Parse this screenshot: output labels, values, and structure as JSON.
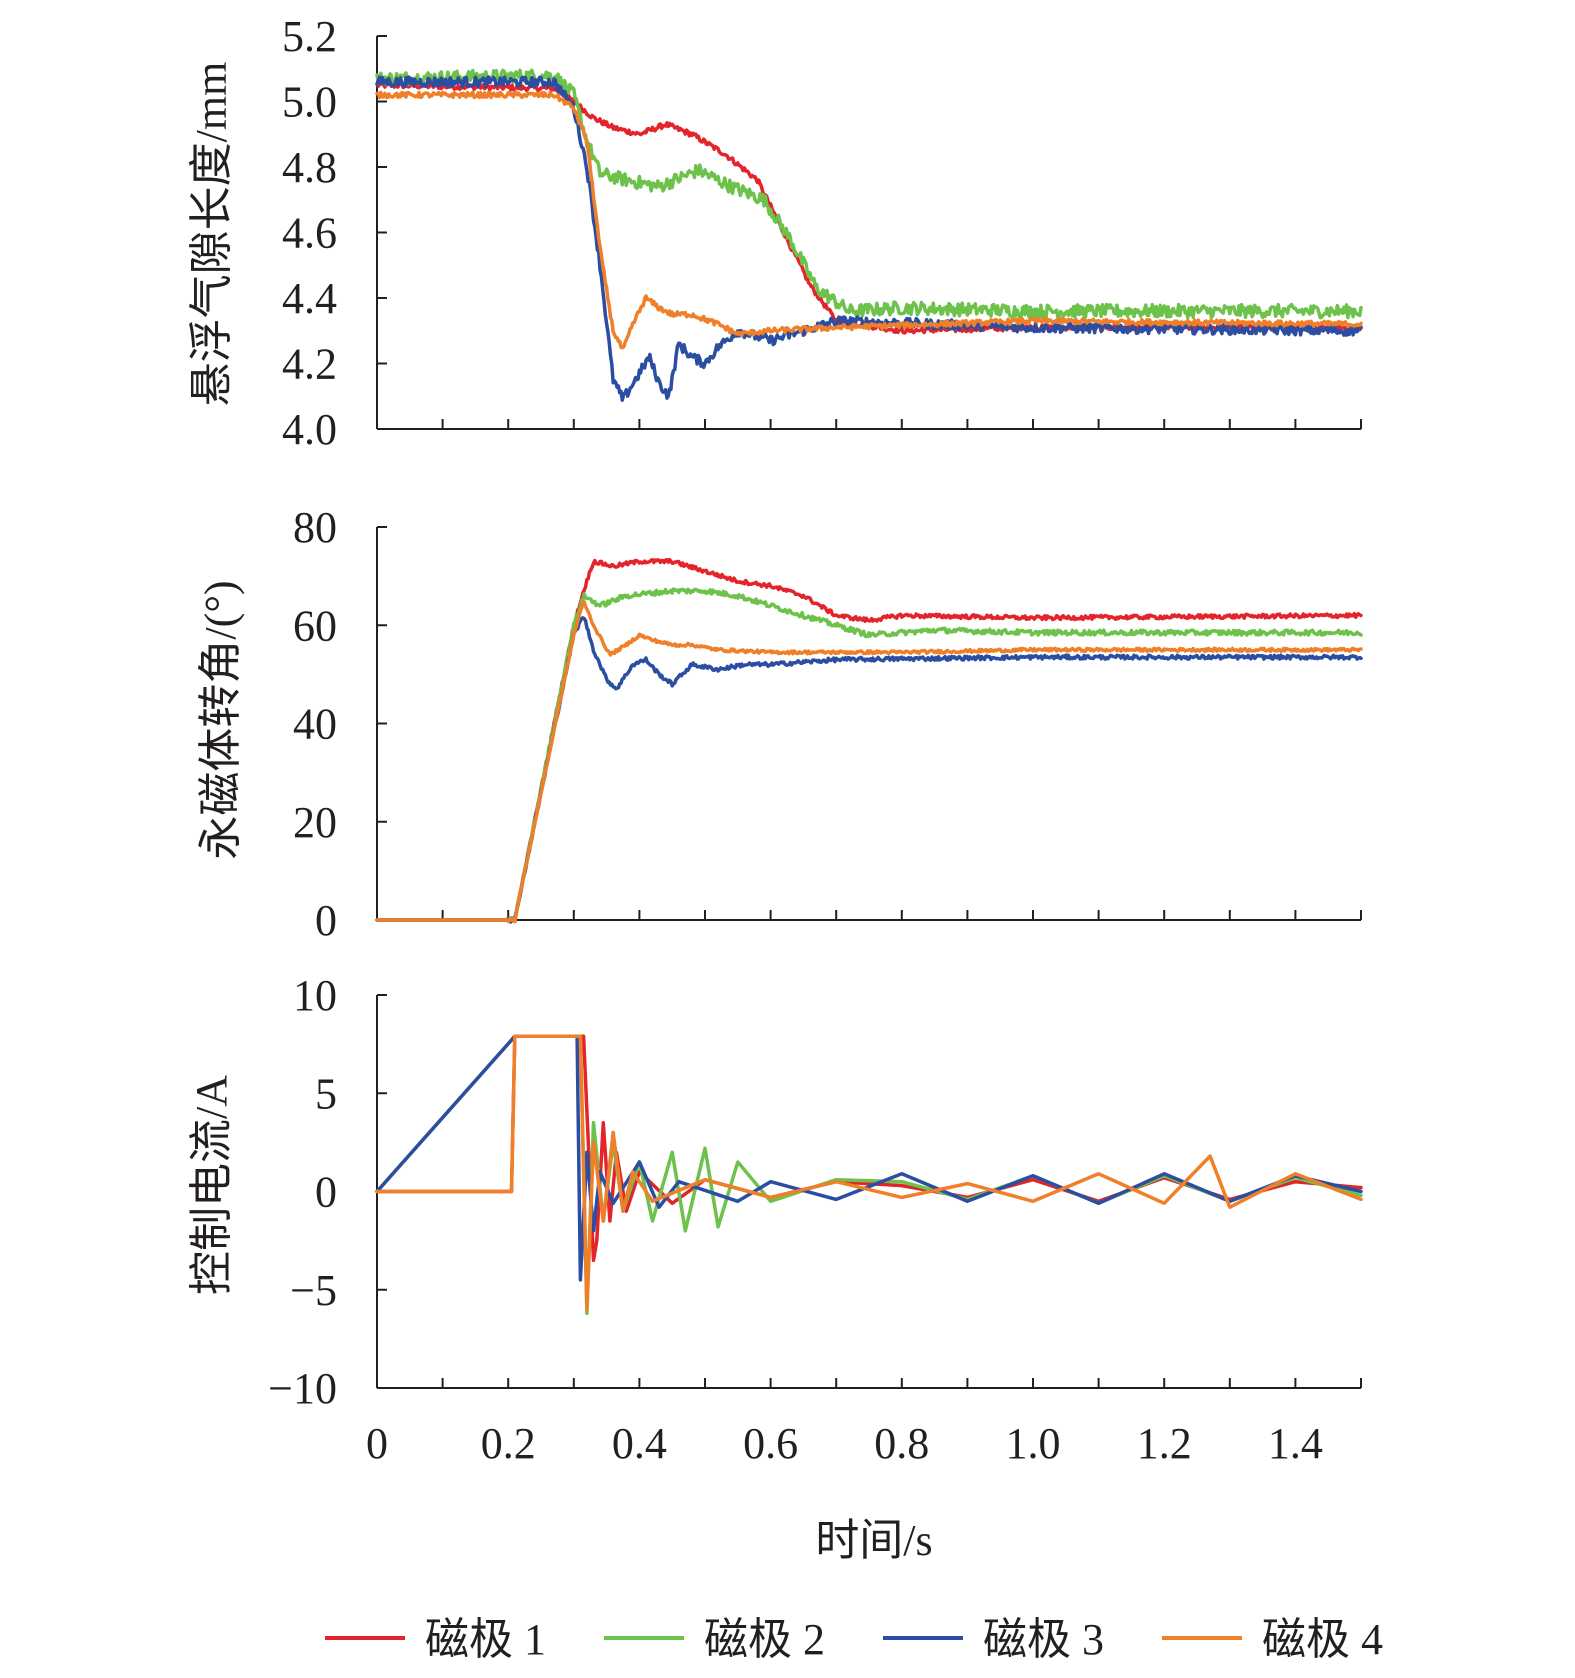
{
  "chart_data": [
    {
      "type": "line",
      "ylabel": "悬浮气隙长度/mm",
      "ylim": [
        4.0,
        5.2
      ],
      "yticks": [
        "5.2",
        "5.0",
        "4.8",
        "4.6",
        "4.4",
        "4.2",
        "4.0"
      ],
      "xlim": [
        0,
        1.5
      ],
      "grid": false,
      "series": [
        {
          "name": "磁极 1",
          "color": "#e3242b",
          "noise": 0.008,
          "points": [
            [
              0,
              5.05
            ],
            [
              0.27,
              5.04
            ],
            [
              0.3,
              5.0
            ],
            [
              0.33,
              4.95
            ],
            [
              0.36,
              4.92
            ],
            [
              0.4,
              4.9
            ],
            [
              0.44,
              4.93
            ],
            [
              0.48,
              4.9
            ],
            [
              0.53,
              4.84
            ],
            [
              0.58,
              4.76
            ],
            [
              0.62,
              4.6
            ],
            [
              0.66,
              4.44
            ],
            [
              0.7,
              4.33
            ],
            [
              0.8,
              4.3
            ],
            [
              1.0,
              4.31
            ],
            [
              1.5,
              4.31
            ]
          ]
        },
        {
          "name": "磁极 2",
          "color": "#6cc24a",
          "noise": 0.02,
          "points": [
            [
              0,
              5.07
            ],
            [
              0.27,
              5.08
            ],
            [
              0.3,
              5.02
            ],
            [
              0.32,
              4.88
            ],
            [
              0.34,
              4.78
            ],
            [
              0.38,
              4.76
            ],
            [
              0.43,
              4.74
            ],
            [
              0.49,
              4.79
            ],
            [
              0.54,
              4.74
            ],
            [
              0.59,
              4.7
            ],
            [
              0.63,
              4.58
            ],
            [
              0.67,
              4.43
            ],
            [
              0.72,
              4.36
            ],
            [
              0.8,
              4.37
            ],
            [
              1.0,
              4.36
            ],
            [
              1.5,
              4.36
            ]
          ]
        },
        {
          "name": "磁极 3",
          "color": "#2b4ea2",
          "noise": 0.015,
          "points": [
            [
              0,
              5.06
            ],
            [
              0.27,
              5.06
            ],
            [
              0.3,
              4.98
            ],
            [
              0.32,
              4.8
            ],
            [
              0.34,
              4.5
            ],
            [
              0.36,
              4.15
            ],
            [
              0.375,
              4.09
            ],
            [
              0.4,
              4.17
            ],
            [
              0.415,
              4.22
            ],
            [
              0.43,
              4.14
            ],
            [
              0.445,
              4.1
            ],
            [
              0.46,
              4.26
            ],
            [
              0.48,
              4.22
            ],
            [
              0.5,
              4.2
            ],
            [
              0.52,
              4.25
            ],
            [
              0.55,
              4.3
            ],
            [
              0.6,
              4.27
            ],
            [
              0.7,
              4.33
            ],
            [
              1.0,
              4.31
            ],
            [
              1.5,
              4.3
            ]
          ]
        },
        {
          "name": "磁极 4",
          "color": "#f07f2a",
          "noise": 0.008,
          "points": [
            [
              0,
              5.02
            ],
            [
              0.27,
              5.02
            ],
            [
              0.3,
              4.98
            ],
            [
              0.32,
              4.88
            ],
            [
              0.34,
              4.55
            ],
            [
              0.36,
              4.3
            ],
            [
              0.375,
              4.24
            ],
            [
              0.39,
              4.32
            ],
            [
              0.41,
              4.4
            ],
            [
              0.43,
              4.37
            ],
            [
              0.45,
              4.35
            ],
            [
              0.48,
              4.35
            ],
            [
              0.52,
              4.32
            ],
            [
              0.55,
              4.29
            ],
            [
              0.6,
              4.3
            ],
            [
              0.7,
              4.31
            ],
            [
              1.0,
              4.33
            ],
            [
              1.5,
              4.32
            ]
          ]
        }
      ]
    },
    {
      "type": "line",
      "ylabel": "永磁体转角/(°)",
      "ylim": [
        0,
        80
      ],
      "yticks": [
        "80",
        "60",
        "40",
        "20",
        "0"
      ],
      "xlim": [
        0,
        1.5
      ],
      "grid": false,
      "series": [
        {
          "name": "磁极 1",
          "color": "#e3242b",
          "noise": 0.4,
          "points": [
            [
              0,
              0
            ],
            [
              0.2,
              0
            ],
            [
              0.21,
              0
            ],
            [
              0.3,
              60
            ],
            [
              0.315,
              67
            ],
            [
              0.33,
              73
            ],
            [
              0.36,
              72
            ],
            [
              0.4,
              73
            ],
            [
              0.45,
              73
            ],
            [
              0.5,
              71
            ],
            [
              0.55,
              69
            ],
            [
              0.6,
              68
            ],
            [
              0.65,
              66
            ],
            [
              0.7,
              62
            ],
            [
              0.75,
              61
            ],
            [
              0.8,
              62
            ],
            [
              1.0,
              61.5
            ],
            [
              1.5,
              62
            ]
          ]
        },
        {
          "name": "磁极 2",
          "color": "#6cc24a",
          "noise": 0.5,
          "points": [
            [
              0,
              0
            ],
            [
              0.21,
              0
            ],
            [
              0.3,
              60
            ],
            [
              0.315,
              66
            ],
            [
              0.34,
              64
            ],
            [
              0.38,
              66
            ],
            [
              0.45,
              67
            ],
            [
              0.5,
              67
            ],
            [
              0.55,
              66
            ],
            [
              0.6,
              64
            ],
            [
              0.65,
              62
            ],
            [
              0.7,
              60
            ],
            [
              0.75,
              58
            ],
            [
              0.85,
              59
            ],
            [
              1.0,
              58.5
            ],
            [
              1.5,
              58.5
            ]
          ]
        },
        {
          "name": "磁极 3",
          "color": "#2b4ea2",
          "noise": 0.4,
          "points": [
            [
              0,
              0
            ],
            [
              0.21,
              0
            ],
            [
              0.3,
              58
            ],
            [
              0.315,
              62
            ],
            [
              0.33,
              55
            ],
            [
              0.35,
              49
            ],
            [
              0.365,
              47
            ],
            [
              0.39,
              52
            ],
            [
              0.41,
              53
            ],
            [
              0.43,
              50
            ],
            [
              0.45,
              48
            ],
            [
              0.48,
              52
            ],
            [
              0.52,
              51
            ],
            [
              0.56,
              52
            ],
            [
              0.6,
              52
            ],
            [
              0.7,
              53
            ],
            [
              1.0,
              53.5
            ],
            [
              1.5,
              53.5
            ]
          ]
        },
        {
          "name": "磁极 4",
          "color": "#f07f2a",
          "noise": 0.3,
          "points": [
            [
              0,
              0
            ],
            [
              0.21,
              0
            ],
            [
              0.3,
              58
            ],
            [
              0.315,
              65
            ],
            [
              0.33,
              60
            ],
            [
              0.355,
              54
            ],
            [
              0.38,
              56
            ],
            [
              0.4,
              58
            ],
            [
              0.42,
              57
            ],
            [
              0.45,
              56
            ],
            [
              0.48,
              56
            ],
            [
              0.52,
              55
            ],
            [
              0.6,
              54.5
            ],
            [
              0.8,
              54.5
            ],
            [
              1.0,
              55
            ],
            [
              1.5,
              55
            ]
          ]
        }
      ]
    },
    {
      "type": "line",
      "ylabel": "控制电流/A",
      "ylim": [
        -10,
        10
      ],
      "yticks": [
        "10",
        "5",
        "0",
        "−5",
        "−10"
      ],
      "xlabel": "时间/s",
      "xlim": [
        0,
        1.5
      ],
      "xticks": [
        "0",
        "0.2",
        "0.4",
        "0.6",
        "0.8",
        "1.0",
        "1.2",
        "1.4"
      ],
      "grid": false,
      "series": [
        {
          "name": "磁极 1",
          "color": "#e3242b",
          "points": [
            [
              0,
              0
            ],
            [
              0.205,
              0
            ],
            [
              0.21,
              7.9
            ],
            [
              0.315,
              7.9
            ],
            [
              0.33,
              -3.5
            ],
            [
              0.335,
              -2.5
            ],
            [
              0.345,
              3.5
            ],
            [
              0.355,
              -1.5
            ],
            [
              0.365,
              2
            ],
            [
              0.38,
              -1
            ],
            [
              0.4,
              1
            ],
            [
              0.45,
              -0.6
            ],
            [
              0.5,
              0.6
            ],
            [
              0.6,
              -0.3
            ],
            [
              0.7,
              0.5
            ],
            [
              0.8,
              0.3
            ],
            [
              0.9,
              -0.3
            ],
            [
              1.0,
              0.6
            ],
            [
              1.1,
              -0.5
            ],
            [
              1.2,
              0.7
            ],
            [
              1.3,
              -0.4
            ],
            [
              1.4,
              0.5
            ],
            [
              1.5,
              0.2
            ]
          ]
        },
        {
          "name": "磁极 2",
          "color": "#6cc24a",
          "points": [
            [
              0,
              0
            ],
            [
              0.21,
              7.9
            ],
            [
              0.31,
              7.9
            ],
            [
              0.32,
              -6.2
            ],
            [
              0.33,
              3.5
            ],
            [
              0.345,
              -1.5
            ],
            [
              0.36,
              2.5
            ],
            [
              0.375,
              -1
            ],
            [
              0.4,
              1.5
            ],
            [
              0.42,
              -1.5
            ],
            [
              0.45,
              2
            ],
            [
              0.47,
              -2
            ],
            [
              0.5,
              2.2
            ],
            [
              0.52,
              -1.8
            ],
            [
              0.55,
              1.5
            ],
            [
              0.6,
              -0.5
            ],
            [
              0.7,
              0.6
            ],
            [
              0.8,
              0.5
            ],
            [
              0.9,
              -0.4
            ],
            [
              1.0,
              0.8
            ],
            [
              1.1,
              -0.6
            ],
            [
              1.2,
              0.8
            ],
            [
              1.3,
              -0.5
            ],
            [
              1.4,
              0.7
            ],
            [
              1.5,
              -0.2
            ]
          ]
        },
        {
          "name": "磁极 3",
          "color": "#2b4ea2",
          "points": [
            [
              0,
              0
            ],
            [
              0.21,
              7.9
            ],
            [
              0.305,
              7.9
            ],
            [
              0.31,
              -4.5
            ],
            [
              0.32,
              2
            ],
            [
              0.33,
              -2
            ],
            [
              0.34,
              1
            ],
            [
              0.36,
              -0.6
            ],
            [
              0.4,
              1.5
            ],
            [
              0.43,
              -0.8
            ],
            [
              0.46,
              0.5
            ],
            [
              0.55,
              -0.5
            ],
            [
              0.6,
              0.5
            ],
            [
              0.7,
              -0.4
            ],
            [
              0.8,
              0.9
            ],
            [
              0.9,
              -0.5
            ],
            [
              1.0,
              0.8
            ],
            [
              1.1,
              -0.6
            ],
            [
              1.2,
              0.9
            ],
            [
              1.3,
              -0.5
            ],
            [
              1.4,
              0.8
            ],
            [
              1.5,
              0
            ]
          ]
        },
        {
          "name": "磁极 4",
          "color": "#f07f2a",
          "points": [
            [
              0,
              0
            ],
            [
              0.205,
              0
            ],
            [
              0.21,
              7.9
            ],
            [
              0.31,
              7.9
            ],
            [
              0.32,
              -6
            ],
            [
              0.33,
              2.5
            ],
            [
              0.345,
              -1.5
            ],
            [
              0.36,
              3
            ],
            [
              0.375,
              -1
            ],
            [
              0.39,
              1
            ],
            [
              0.42,
              -0.5
            ],
            [
              0.5,
              0.6
            ],
            [
              0.6,
              -0.3
            ],
            [
              0.7,
              0.5
            ],
            [
              0.8,
              -0.3
            ],
            [
              0.9,
              0.4
            ],
            [
              1.0,
              -0.5
            ],
            [
              1.1,
              0.9
            ],
            [
              1.2,
              -0.6
            ],
            [
              1.27,
              1.8
            ],
            [
              1.3,
              -0.8
            ],
            [
              1.4,
              0.9
            ],
            [
              1.5,
              -0.4
            ]
          ]
        }
      ]
    }
  ],
  "legend": {
    "placement": "bottom",
    "items": [
      {
        "label": "磁极 1",
        "color": "#e3242b"
      },
      {
        "label": "磁极 2",
        "color": "#6cc24a"
      },
      {
        "label": "磁极 3",
        "color": "#2b4ea2"
      },
      {
        "label": "磁极 4",
        "color": "#f07f2a"
      }
    ]
  }
}
